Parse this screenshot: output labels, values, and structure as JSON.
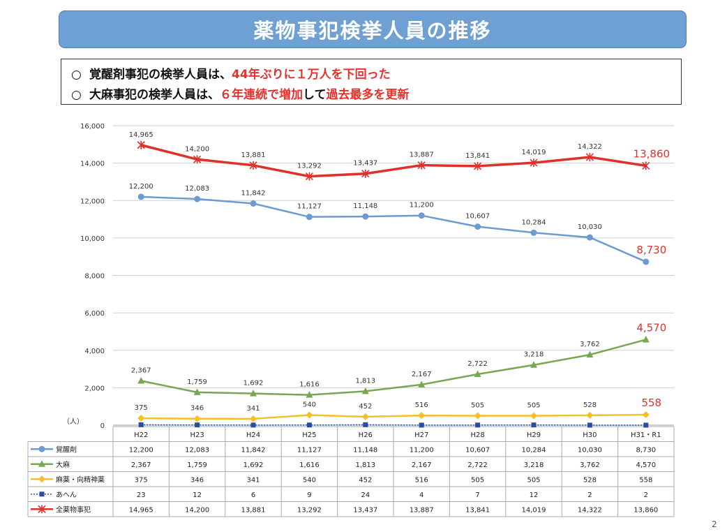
{
  "title": "薬物事犯検挙人員の推移",
  "summary": {
    "line1": {
      "bullet": "○",
      "black": "覚醒剤事犯の検挙人員は、",
      "red": "44年ぶりに１万人を下回った"
    },
    "line2": {
      "bullet": "○",
      "black1": "大麻事犯の検挙人員は、",
      "red1": "６年連続で増加",
      "black2": "して",
      "red2": "過去最多を更新"
    }
  },
  "page_number": "2",
  "chart_data": {
    "type": "line",
    "categories": [
      "H22",
      "H23",
      "H24",
      "H25",
      "H26",
      "H27",
      "H28",
      "H29",
      "H30",
      "H31・R1"
    ],
    "ylim": [
      0,
      16000
    ],
    "yticks": [
      0,
      2000,
      4000,
      6000,
      8000,
      10000,
      12000,
      14000,
      16000
    ],
    "ytick_labels": [
      "0",
      "2,000",
      "4,000",
      "6,000",
      "8,000",
      "10,000",
      "12,000",
      "14,000",
      "16,000"
    ],
    "unit_label": "（人）",
    "grid": true,
    "series": [
      {
        "name": "覚醒剤",
        "color": "#6c9bd2",
        "marker": "circle",
        "values": [
          12200,
          12083,
          11842,
          11127,
          11148,
          11200,
          10607,
          10284,
          10030,
          8730
        ],
        "display": [
          "12,200",
          "12,083",
          "11,842",
          "11,127",
          "11,148",
          "11,200",
          "10,607",
          "10,284",
          "10,030",
          "8,730"
        ],
        "point_labels": [
          "12,200",
          "12,083",
          "11,842",
          "11,127",
          "11,148",
          "11,200",
          "10,607",
          "10,284",
          "10,030",
          "8,730"
        ]
      },
      {
        "name": "大麻",
        "color": "#77a851",
        "marker": "triangle",
        "values": [
          2367,
          1759,
          1692,
          1616,
          1813,
          2167,
          2722,
          3218,
          3762,
          4570
        ],
        "display": [
          "2,367",
          "1,759",
          "1,692",
          "1,616",
          "1,813",
          "2,167",
          "2,722",
          "3,218",
          "3,762",
          "4,570"
        ],
        "point_labels": [
          "2,367",
          "1,759",
          "1,692",
          "1,616",
          "1,813",
          "2,167",
          "2,722",
          "3,218",
          "3,762",
          "4,570"
        ]
      },
      {
        "name": "麻薬・向精神薬",
        "color": "#f5bf2a",
        "marker": "diamond",
        "values": [
          375,
          346,
          341,
          540,
          452,
          516,
          505,
          505,
          528,
          558
        ],
        "display": [
          "375",
          "346",
          "341",
          "540",
          "452",
          "516",
          "505",
          "505",
          "528",
          "558"
        ],
        "point_labels": [
          "375",
          "346",
          "341",
          "540",
          "452",
          "516",
          "505",
          "505",
          "528",
          "558"
        ]
      },
      {
        "name": "あへん",
        "color": "#2a4f9a",
        "marker": "square",
        "dashed": true,
        "values": [
          23,
          12,
          6,
          9,
          24,
          4,
          7,
          12,
          2,
          2
        ],
        "display": [
          "23",
          "12",
          "6",
          "9",
          "24",
          "4",
          "7",
          "12",
          "2",
          "2"
        ],
        "point_labels": []
      },
      {
        "name": "全薬物事犯",
        "color": "#e0302a",
        "marker": "cross",
        "values": [
          14965,
          14200,
          13881,
          13292,
          13437,
          13887,
          13841,
          14019,
          14322,
          13860
        ],
        "display": [
          "14,965",
          "14,200",
          "13,881",
          "13,292",
          "13,437",
          "13,887",
          "13,841",
          "14,019",
          "14,322",
          "13,860"
        ],
        "point_labels": [
          "14,965",
          "14,200",
          "13,881",
          "13,292",
          "13,437",
          "13,887",
          "13,841",
          "14,019",
          "14,322",
          "13,860"
        ]
      }
    ],
    "highlight_color": "#e0302a"
  }
}
